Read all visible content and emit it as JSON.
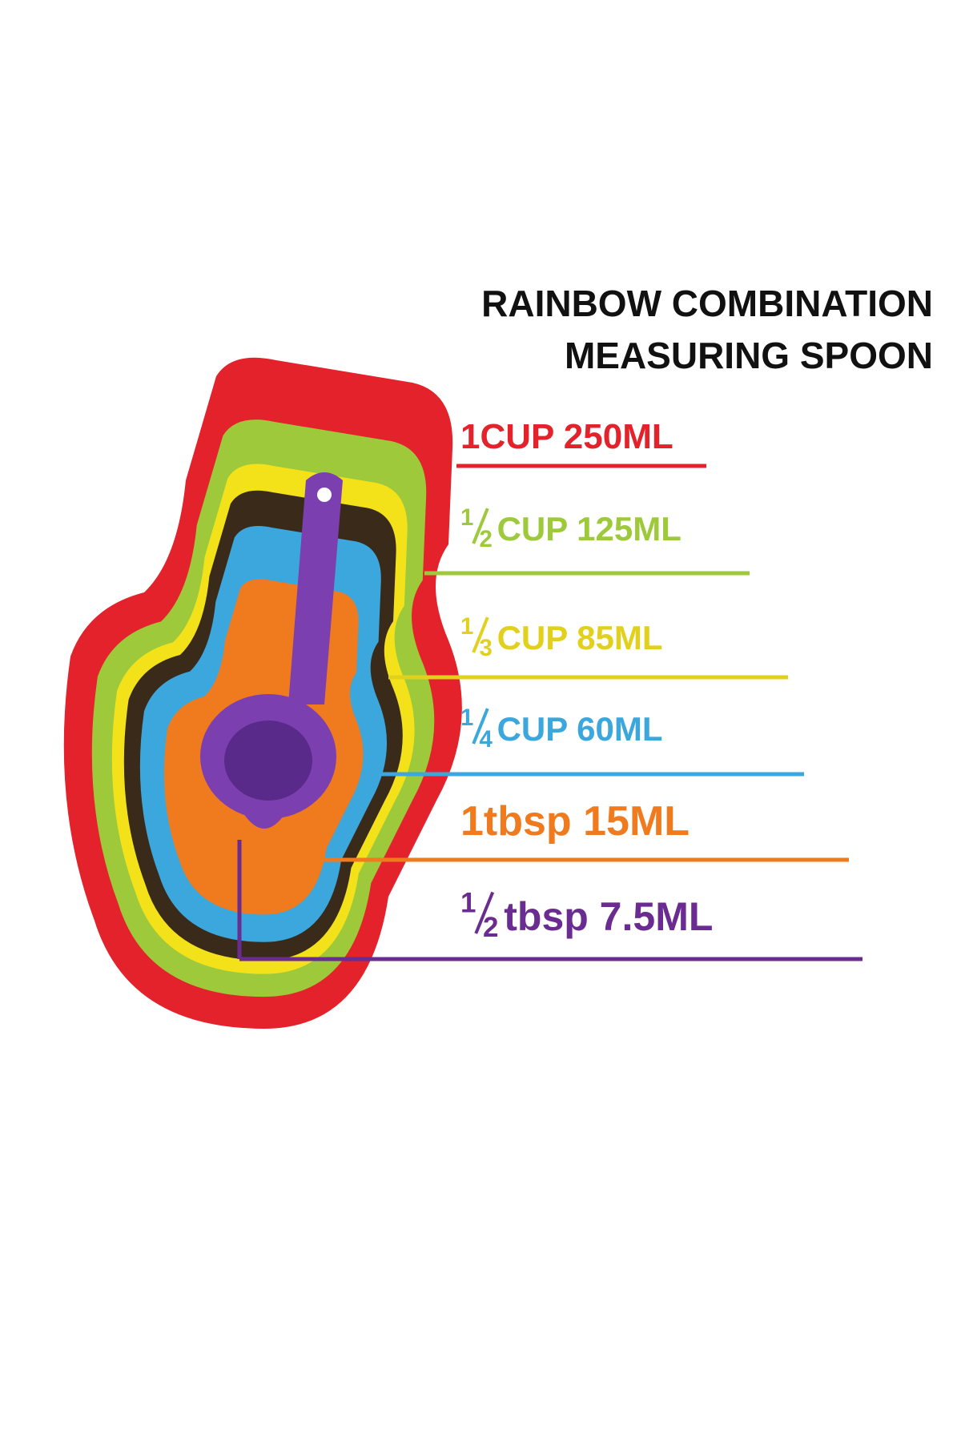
{
  "title": {
    "line1": "RAINBOW COMBINATION",
    "line2": "MEASURING SPOON"
  },
  "labels": [
    {
      "text": "1CUP 250ML",
      "color": "#e3222b"
    },
    {
      "numerator": "1",
      "denominator": "2",
      "text": "CUP 125ML",
      "color": "#9dc93b"
    },
    {
      "numerator": "1",
      "denominator": "3",
      "text": "CUP 85ML",
      "color": "#e2d11c"
    },
    {
      "numerator": "1",
      "denominator": "4",
      "text": "CUP 60ML",
      "color": "#3ba7dc"
    },
    {
      "text": "1tbsp 15ML",
      "color": "#f07a1e"
    },
    {
      "numerator": "1",
      "denominator": "2",
      "text": "tbsp 7.5ML",
      "color": "#6a2c91"
    }
  ]
}
